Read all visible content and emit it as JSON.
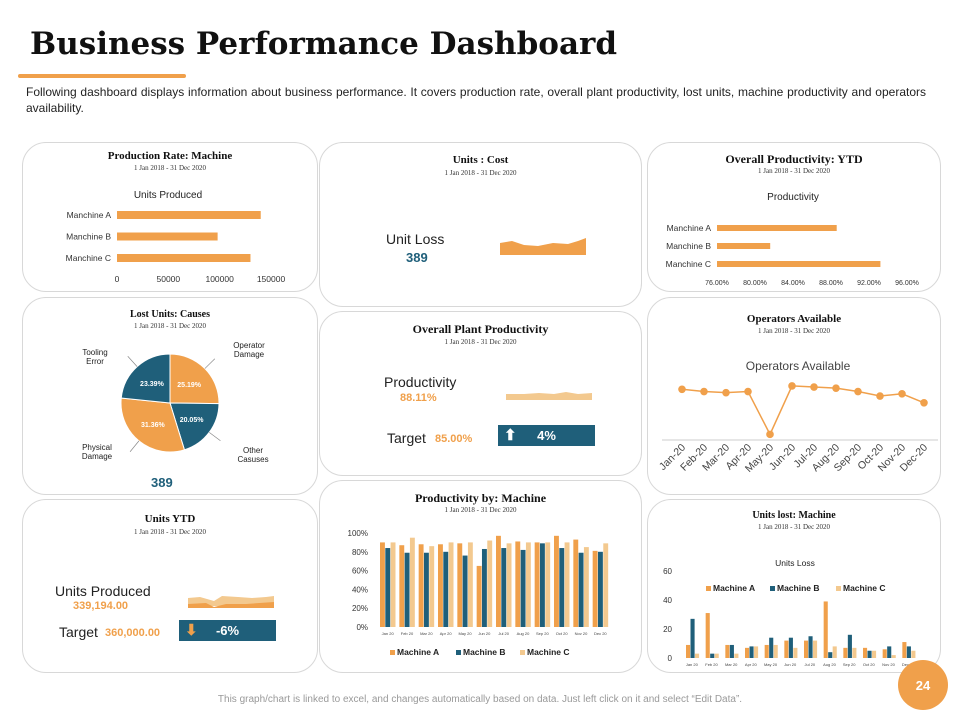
{
  "header": {
    "title": "Business Performance Dashboard",
    "intro": "Following dashboard displays information about business performance. It covers production rate, overall plant productivity, lost units, machine productivity and operators availability."
  },
  "date_range": "1 Jan 2018 - 31 Dec 2020",
  "colors": {
    "orange": "#f0a04b",
    "blue": "#1f5f7a",
    "tan": "#f3c98f"
  },
  "production_rate": {
    "title": "Production Rate: Machine",
    "chart_data": {
      "type": "bar",
      "orientation": "horizontal",
      "title": "Units Produced",
      "categories": [
        "Manchine A",
        "Manchine B",
        "Manchine C"
      ],
      "values": [
        140000,
        98000,
        130000
      ],
      "xlim": [
        0,
        150000
      ],
      "xticks": [
        "0",
        "50000",
        "100000",
        "150000"
      ]
    }
  },
  "units_cost": {
    "title": "Units : Cost",
    "label": "Unit Loss",
    "value": "389"
  },
  "overall_productivity": {
    "title": "Overall Productivity: YTD",
    "chart_data": {
      "type": "bar",
      "orientation": "horizontal",
      "title": "Productivity",
      "categories": [
        "Manchine A",
        "Manchine B",
        "Manchine C"
      ],
      "values": [
        88.6,
        81.6,
        93.2
      ],
      "xlim": [
        76,
        96
      ],
      "xticks": [
        "76.00%",
        "80.00%",
        "84.00%",
        "88.00%",
        "92.00%",
        "96.00%"
      ]
    }
  },
  "lost_units": {
    "title": "Lost Units: Causes",
    "total": "389",
    "chart_data": {
      "type": "pie",
      "labels": [
        "Operator Damage",
        "Other Casuses",
        "Physical Damage",
        "Tooling Error"
      ],
      "values": [
        25.19,
        20.05,
        31.36,
        23.39
      ],
      "value_labels": [
        "25.19%",
        "20.05%",
        "31.36%",
        "23.39%"
      ]
    },
    "labels": {
      "operator": [
        "Operator",
        "Damage"
      ],
      "other": [
        "Other",
        "Casuses"
      ],
      "physical": [
        "Physical",
        "Damage"
      ],
      "tooling": [
        "Tooling",
        "Error"
      ]
    }
  },
  "plant_productivity": {
    "title": "Overall Plant Productivity",
    "label": "Productivity",
    "value": "88.11%",
    "target_label": "Target",
    "target_value": "85.00%",
    "change": "4%"
  },
  "operators": {
    "title": "Operators Available",
    "chart_data": {
      "type": "line",
      "title": "Operators Available",
      "categories": [
        "Jan-20",
        "Feb-20",
        "Mar-20",
        "Apr-20",
        "May-20",
        "Jun-20",
        "Jul-20",
        "Aug-20",
        "Sep-20",
        "Oct-20",
        "Nov-20",
        "Dec-20"
      ],
      "values": [
        80,
        78,
        77,
        78,
        40,
        83,
        82,
        81,
        78,
        74,
        76,
        68
      ],
      "ylim": [
        35,
        90
      ]
    }
  },
  "units_ytd": {
    "title": "Units YTD",
    "label": "Units Produced",
    "value": "339,194.00",
    "target_label": "Target",
    "target_value": "360,000.00",
    "change": "-6%"
  },
  "productivity_machine": {
    "title": "Productivity by: Machine",
    "chart_data": {
      "type": "bar",
      "categories": [
        "Jan 20",
        "Feb 20",
        "Mar 20",
        "Apr 20",
        "May 20",
        "Jun 20",
        "Jul 20",
        "Aug 20",
        "Sep 20",
        "Oct 20",
        "Nov 20",
        "Dec 20"
      ],
      "series": [
        {
          "name": "Machine A",
          "values": [
            90,
            87,
            88,
            88,
            89,
            65,
            97,
            91,
            90,
            97,
            93,
            81
          ]
        },
        {
          "name": "Machine B",
          "values": [
            84,
            79,
            79,
            80,
            76,
            83,
            84,
            82,
            89,
            84,
            79,
            80
          ]
        },
        {
          "name": "Machine C",
          "values": [
            90,
            95,
            86,
            90,
            90,
            92,
            89,
            90,
            90,
            90,
            85,
            89
          ]
        }
      ],
      "ylim": [
        0,
        100
      ],
      "yticks": [
        "0%",
        "20%",
        "40%",
        "60%",
        "80%",
        "100%"
      ]
    }
  },
  "units_lost_machine": {
    "title": "Units lost: Machine",
    "chart_data": {
      "type": "bar",
      "title": "Units Loss",
      "categories": [
        "Jan 20",
        "Feb 20",
        "Mar 20",
        "Apr 20",
        "May 20",
        "Jun 20",
        "Jul 20",
        "Aug 20",
        "Sep 20",
        "Oct 20",
        "Nov 20",
        "Dec 20"
      ],
      "series": [
        {
          "name": "Machine A",
          "values": [
            9,
            31,
            9,
            7,
            9,
            12,
            12,
            39,
            7,
            7,
            6,
            11
          ]
        },
        {
          "name": "Machine B",
          "values": [
            27,
            3,
            9,
            8,
            14,
            14,
            15,
            4,
            16,
            5,
            8,
            8
          ]
        },
        {
          "name": "Machine C",
          "values": [
            3,
            3,
            3,
            8,
            9,
            7,
            12,
            8,
            7,
            5,
            2,
            5
          ]
        }
      ],
      "ylim": [
        0,
        60
      ],
      "yticks": [
        "0",
        "20",
        "40",
        "60"
      ]
    }
  },
  "footer": {
    "note": "This graph/chart is linked to excel, and changes automatically based on data. Just left click on it and select “Edit Data”.",
    "page": "24"
  }
}
